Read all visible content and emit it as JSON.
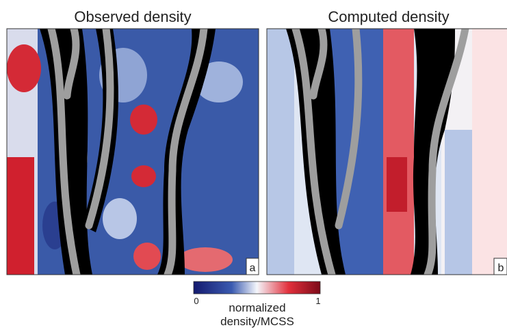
{
  "panels": [
    {
      "title": "Observed density",
      "label": "a"
    },
    {
      "title": "Computed density",
      "label": "b"
    }
  ],
  "colorbar": {
    "min_label": "0",
    "max_label": "1",
    "caption_line1": "normalized",
    "caption_line2": "density/MCSS"
  }
}
